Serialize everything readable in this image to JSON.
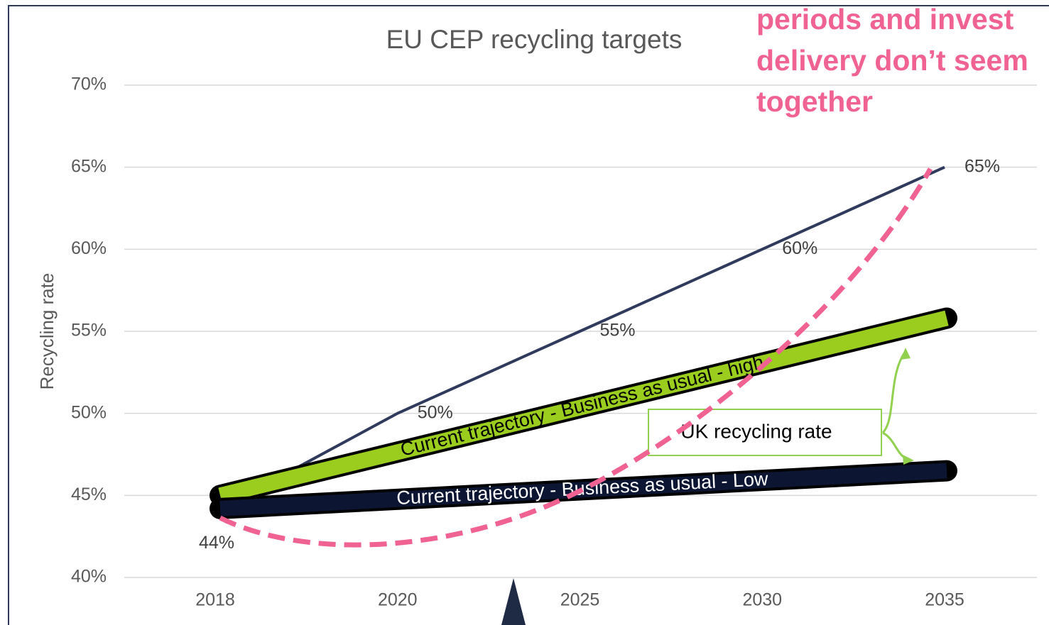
{
  "chart_data": {
    "type": "line",
    "title": "EU CEP recycling targets",
    "y_label": "Recycling rate",
    "categories": [
      "2018",
      "2020",
      "2025",
      "2030",
      "2035"
    ],
    "series": [
      {
        "name": "EU CEP recycling targets",
        "color": "#2f3a5c",
        "values": [
          44,
          50,
          55,
          60,
          65
        ],
        "value_labels": [
          "44%",
          "50%",
          "55%",
          "60%",
          "65%"
        ]
      }
    ],
    "trajectories": [
      {
        "name": "Current trajectory - Business as usual - high",
        "color": "#9acd1e",
        "values": [
          45,
          55.8
        ]
      },
      {
        "name": "Current trajectory - Business as usual - Low",
        "color": "#0c1633",
        "values": [
          44.2,
          46.5
        ]
      }
    ],
    "box_label": "UK recycling rate",
    "callout_lines": [
      "periods and invest",
      "delivery don’t seem",
      "together"
    ],
    "ylim": [
      40,
      70
    ],
    "yticks": [
      {
        "value": 40,
        "label": "40%"
      },
      {
        "value": 45,
        "label": "45%"
      },
      {
        "value": 50,
        "label": "50%"
      },
      {
        "value": 55,
        "label": "55%"
      },
      {
        "value": 60,
        "label": "60%"
      },
      {
        "value": 65,
        "label": "65%"
      },
      {
        "value": 70,
        "label": "70%"
      }
    ],
    "grid": true
  }
}
